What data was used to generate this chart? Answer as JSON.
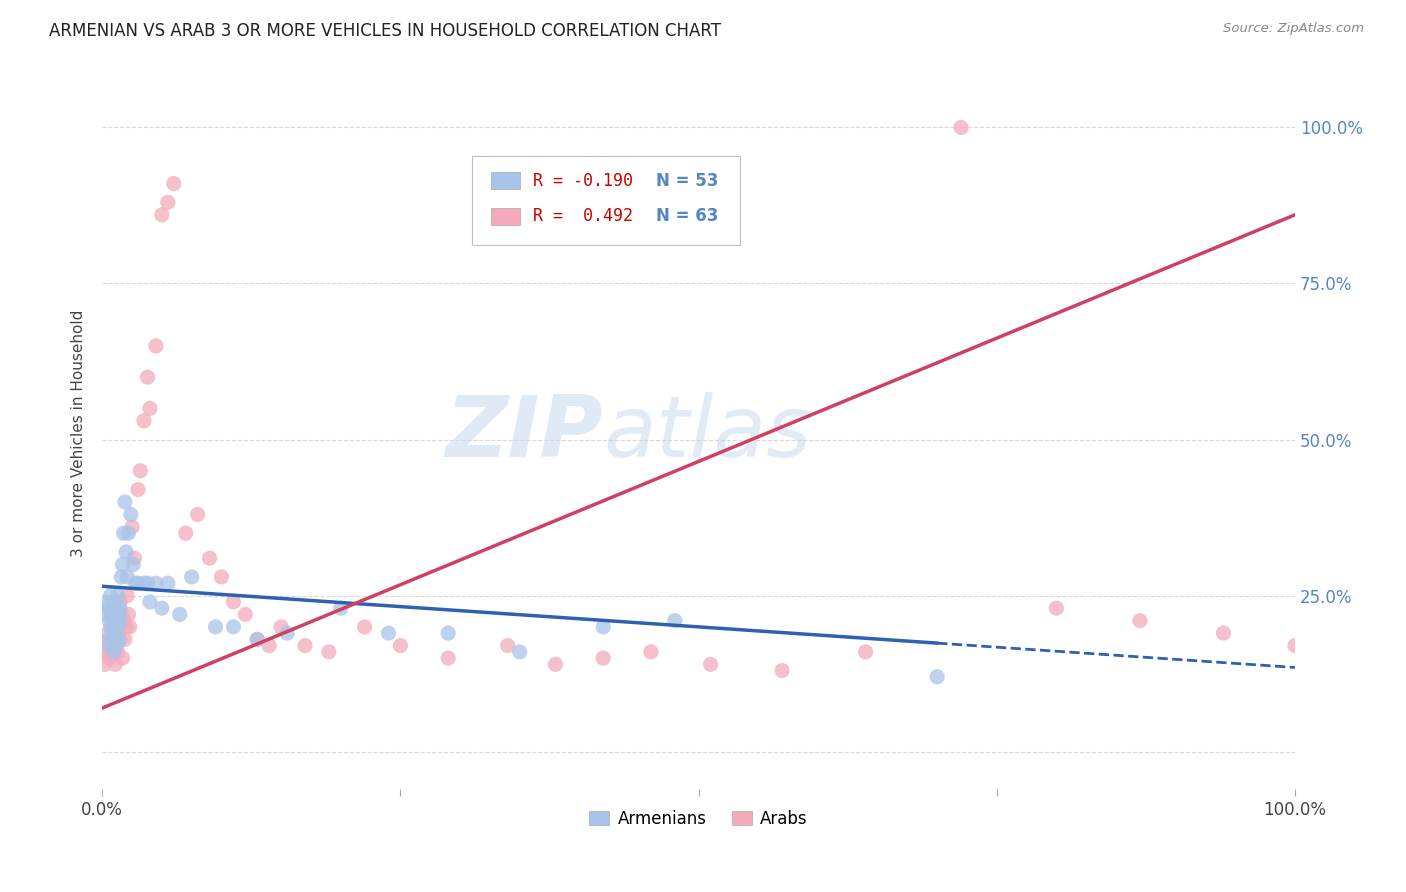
{
  "title": "ARMENIAN VS ARAB 3 OR MORE VEHICLES IN HOUSEHOLD CORRELATION CHART",
  "source": "Source: ZipAtlas.com",
  "ylabel": "3 or more Vehicles in Household",
  "legend_armenian_r": "R = -0.190",
  "legend_armenian_n": "N = 53",
  "legend_arab_r": "R =  0.492",
  "legend_arab_n": "N = 63",
  "legend_label_armenian": "Armenians",
  "legend_label_arab": "Arabs",
  "color_armenian": "#a8c4e8",
  "color_arab": "#f4aabc",
  "color_trendline_armenian": "#3060b0",
  "color_trendline_arab": "#d04060",
  "watermark_zip": "ZIP",
  "watermark_atlas": "atlas",
  "background_color": "#ffffff",
  "grid_color": "#d8d8d8",
  "right_axis_color": "#5585c5",
  "armenian_x": [
    0.003,
    0.004,
    0.005,
    0.005,
    0.006,
    0.006,
    0.007,
    0.008,
    0.008,
    0.009,
    0.009,
    0.01,
    0.01,
    0.011,
    0.011,
    0.012,
    0.012,
    0.013,
    0.013,
    0.014,
    0.014,
    0.015,
    0.015,
    0.016,
    0.017,
    0.018,
    0.019,
    0.02,
    0.021,
    0.022,
    0.024,
    0.026,
    0.028,
    0.03,
    0.035,
    0.038,
    0.04,
    0.045,
    0.05,
    0.055,
    0.065,
    0.075,
    0.095,
    0.11,
    0.13,
    0.155,
    0.2,
    0.24,
    0.29,
    0.35,
    0.42,
    0.48,
    0.7
  ],
  "armenian_y": [
    0.24,
    0.22,
    0.19,
    0.23,
    0.21,
    0.17,
    0.25,
    0.18,
    0.22,
    0.2,
    0.24,
    0.16,
    0.23,
    0.22,
    0.19,
    0.17,
    0.21,
    0.25,
    0.2,
    0.22,
    0.18,
    0.23,
    0.21,
    0.28,
    0.3,
    0.35,
    0.4,
    0.32,
    0.28,
    0.35,
    0.38,
    0.3,
    0.27,
    0.27,
    0.27,
    0.27,
    0.24,
    0.27,
    0.23,
    0.27,
    0.22,
    0.28,
    0.2,
    0.2,
    0.18,
    0.19,
    0.23,
    0.19,
    0.19,
    0.16,
    0.2,
    0.21,
    0.12
  ],
  "arab_x": [
    0.002,
    0.003,
    0.004,
    0.005,
    0.006,
    0.007,
    0.008,
    0.008,
    0.009,
    0.01,
    0.01,
    0.011,
    0.012,
    0.013,
    0.013,
    0.014,
    0.015,
    0.015,
    0.016,
    0.017,
    0.018,
    0.019,
    0.02,
    0.021,
    0.022,
    0.023,
    0.025,
    0.027,
    0.03,
    0.032,
    0.035,
    0.038,
    0.04,
    0.045,
    0.05,
    0.055,
    0.06,
    0.07,
    0.08,
    0.09,
    0.1,
    0.11,
    0.12,
    0.13,
    0.14,
    0.15,
    0.17,
    0.19,
    0.22,
    0.25,
    0.29,
    0.34,
    0.38,
    0.42,
    0.46,
    0.51,
    0.57,
    0.64,
    0.72,
    0.8,
    0.87,
    0.94,
    1.0
  ],
  "arab_y": [
    0.14,
    0.17,
    0.16,
    0.18,
    0.15,
    0.2,
    0.16,
    0.22,
    0.19,
    0.17,
    0.23,
    0.14,
    0.19,
    0.22,
    0.16,
    0.2,
    0.24,
    0.18,
    0.22,
    0.15,
    0.21,
    0.18,
    0.2,
    0.25,
    0.22,
    0.2,
    0.36,
    0.31,
    0.42,
    0.45,
    0.53,
    0.6,
    0.55,
    0.65,
    0.86,
    0.88,
    0.91,
    0.35,
    0.38,
    0.31,
    0.28,
    0.24,
    0.22,
    0.18,
    0.17,
    0.2,
    0.17,
    0.16,
    0.2,
    0.17,
    0.15,
    0.17,
    0.14,
    0.15,
    0.16,
    0.14,
    0.13,
    0.16,
    1.0,
    0.23,
    0.21,
    0.19,
    0.17
  ],
  "trendline_arm_x0": 0.0,
  "trendline_arm_y0": 0.265,
  "trendline_arm_x1": 1.0,
  "trendline_arm_y1": 0.135,
  "trendline_arm_solid_end": 0.7,
  "trendline_arab_x0": 0.0,
  "trendline_arab_y0": 0.07,
  "trendline_arab_x1": 1.0,
  "trendline_arab_y1": 0.86,
  "xlim_min": 0.0,
  "xlim_max": 1.0,
  "ylim_min": -0.06,
  "ylim_max": 1.08
}
